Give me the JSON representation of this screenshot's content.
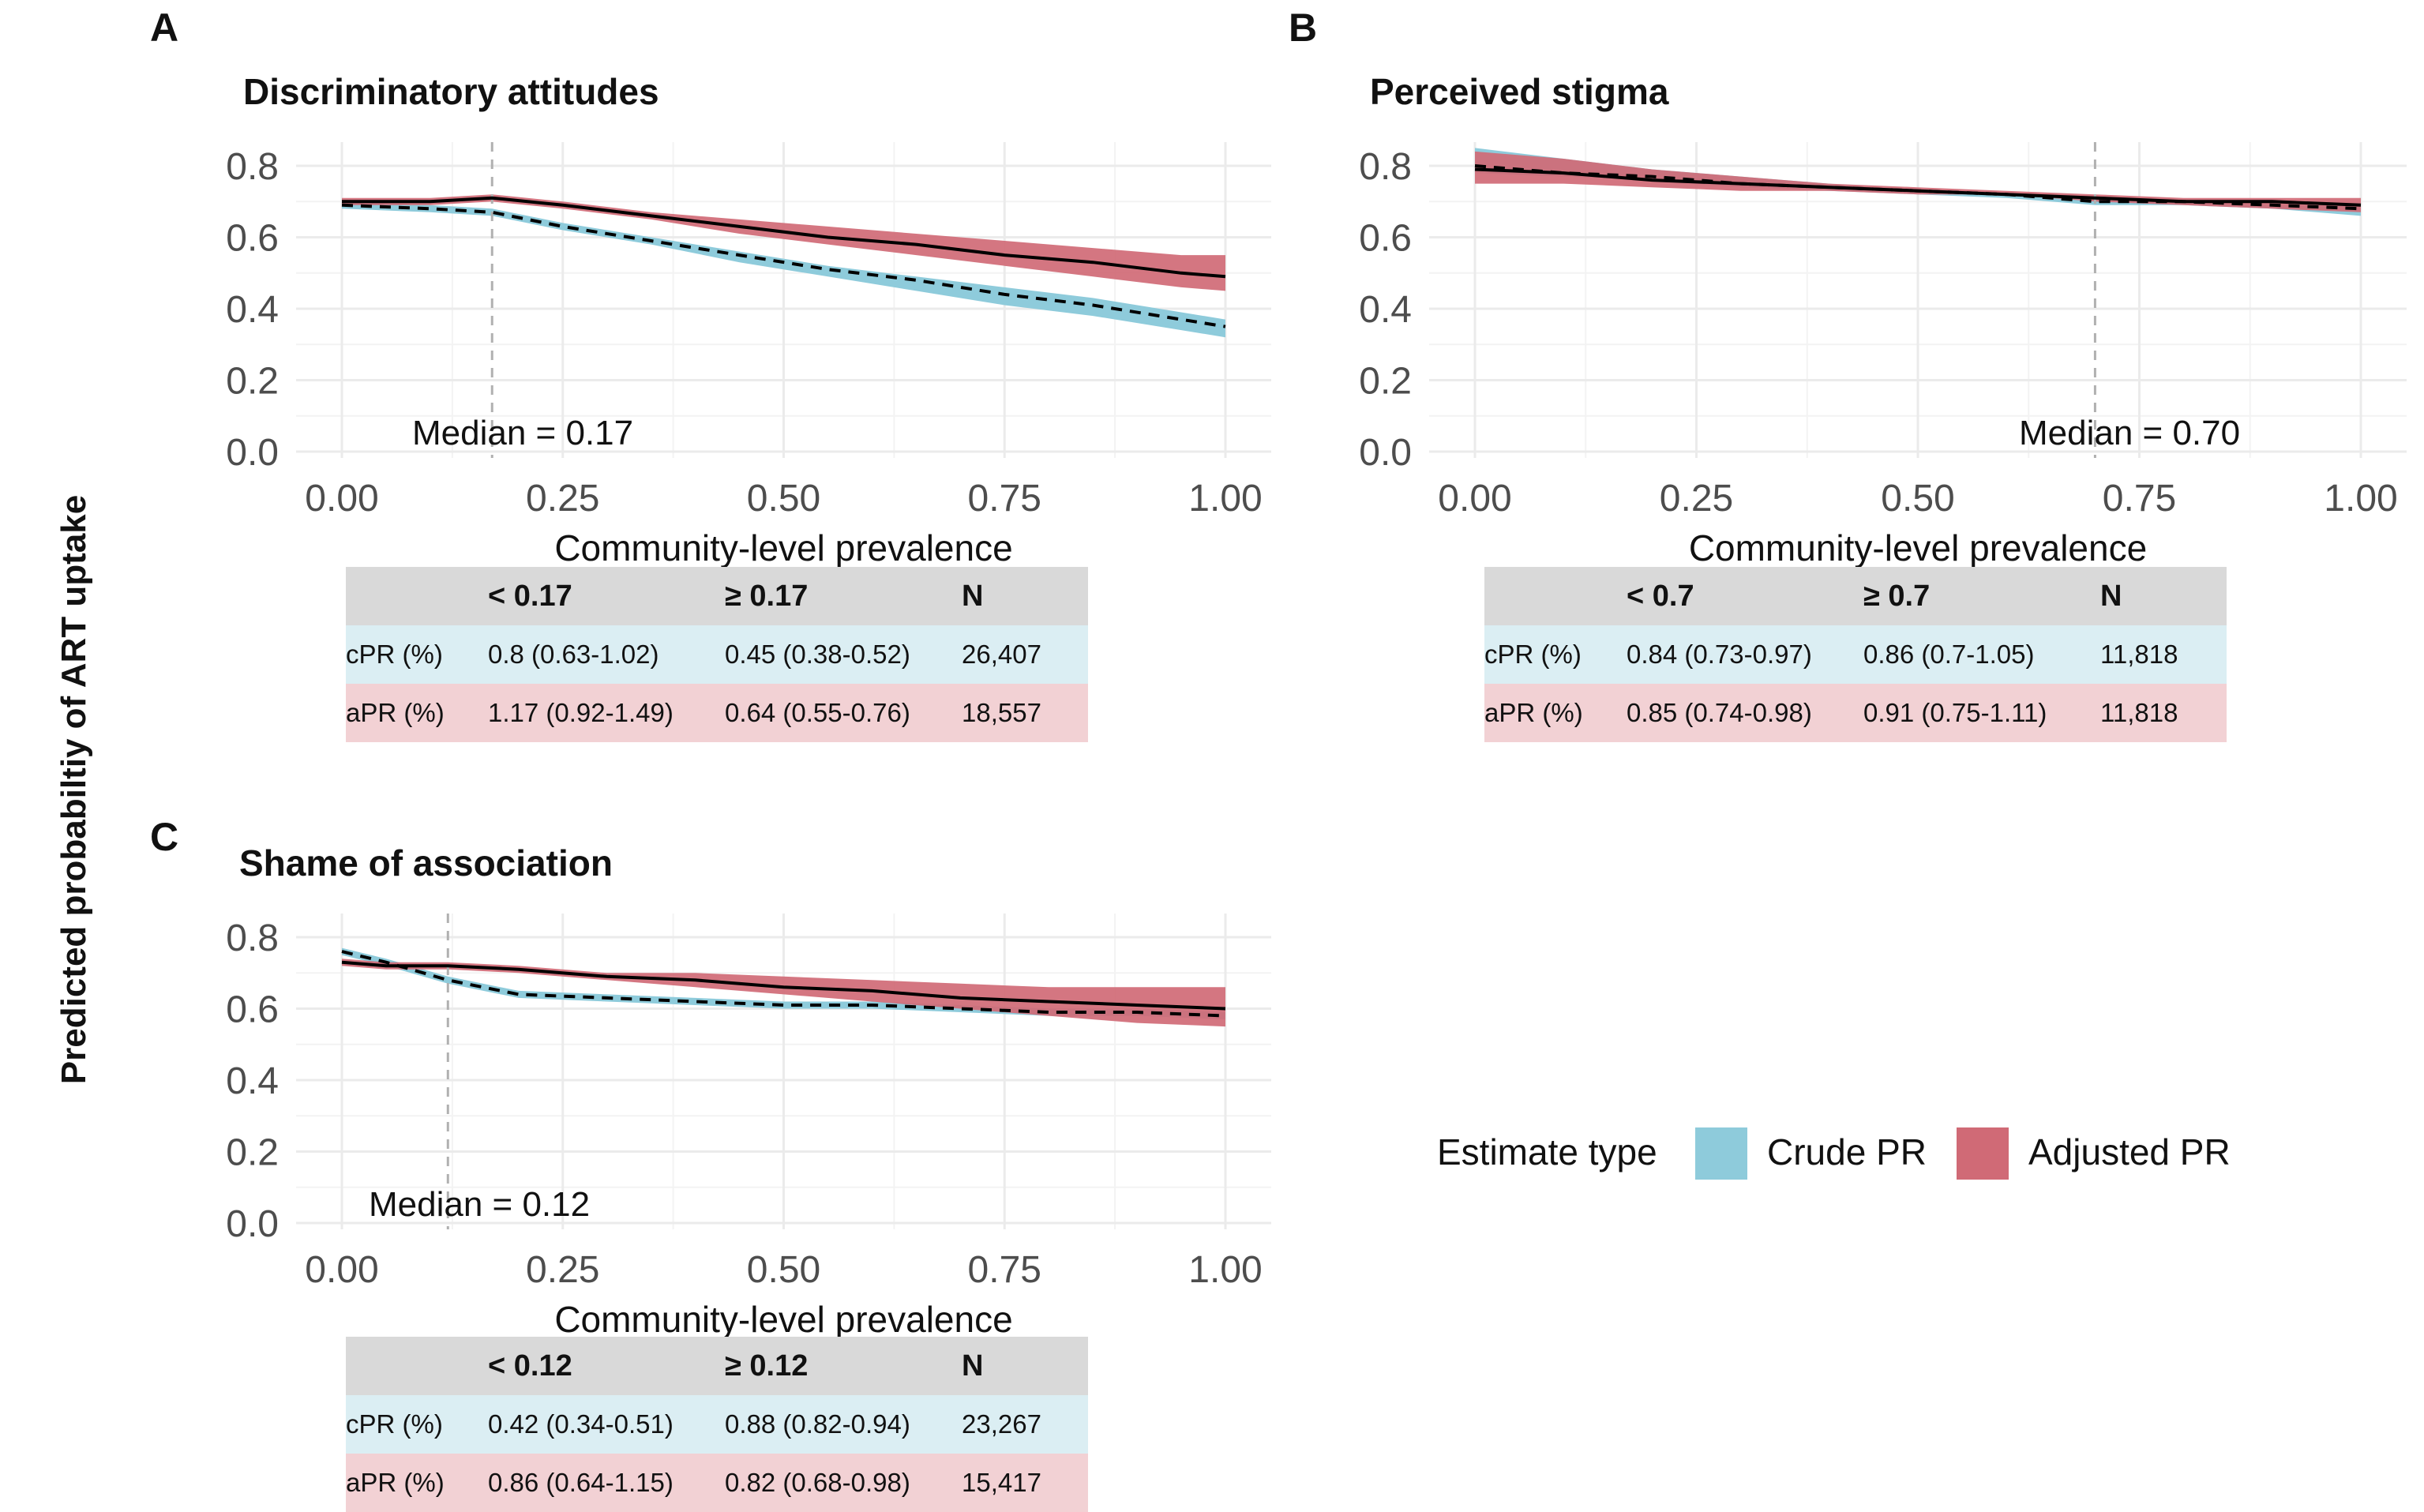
{
  "y_axis_label": "Predicted probabiltiy of ART uptake",
  "legend": {
    "title": "Estimate type",
    "items": [
      {
        "label": "Crude PR",
        "color": "#8ecbdb"
      },
      {
        "label": "Adjusted PR",
        "color": "#d06a76"
      }
    ]
  },
  "colors": {
    "crude": "#8ecbdb",
    "adjusted": "#d06a76",
    "grid": "#ebebeb"
  },
  "panels": [
    {
      "letter": "A",
      "title": "Discriminatory attitudes",
      "median_label": "Median = 0.17",
      "table": {
        "headers": [
          "",
          "< 0.17",
          "≥ 0.17",
          "N"
        ],
        "crude": [
          "cPR (%)",
          "0.8 (0.63-1.02)",
          "0.45 (0.38-0.52)",
          "26,407"
        ],
        "adjusted": [
          "aPR (%)",
          "1.17 (0.92-1.49)",
          "0.64 (0.55-0.76)",
          "18,557"
        ]
      }
    },
    {
      "letter": "B",
      "title": "Perceived stigma",
      "median_label": "Median = 0.70",
      "table": {
        "headers": [
          "",
          "< 0.7",
          "≥ 0.7",
          "N"
        ],
        "crude": [
          "cPR (%)",
          "0.84 (0.73-0.97)",
          "0.86 (0.7-1.05)",
          "11,818"
        ],
        "adjusted": [
          "aPR (%)",
          "0.85 (0.74-0.98)",
          "0.91 (0.75-1.11)",
          "11,818"
        ]
      }
    },
    {
      "letter": "C",
      "title": "Shame of association",
      "median_label": "Median = 0.12",
      "table": {
        "headers": [
          "",
          "< 0.12",
          "≥ 0.12",
          "N"
        ],
        "crude": [
          "cPR (%)",
          "0.42 (0.34-0.51)",
          "0.88 (0.82-0.94)",
          "23,267"
        ],
        "adjusted": [
          "aPR (%)",
          "0.86 (0.64-1.15)",
          "0.82 (0.68-0.98)",
          "15,417"
        ]
      }
    }
  ],
  "chart_data": [
    {
      "type": "line",
      "title": "Discriminatory attitudes",
      "xlabel": "Community-level prevalence",
      "ylabel": "Predicted probabiltiy of ART uptake",
      "xlim": [
        0,
        1
      ],
      "ylim": [
        0,
        0.8
      ],
      "xticks": [
        "0.00",
        "0.25",
        "0.50",
        "0.75",
        "1.00"
      ],
      "yticks": [
        "0.0",
        "0.2",
        "0.4",
        "0.6",
        "0.8"
      ],
      "median": 0.17,
      "x": [
        0,
        0.1,
        0.17,
        0.25,
        0.35,
        0.45,
        0.55,
        0.65,
        0.75,
        0.85,
        0.95,
        1.0
      ],
      "series": [
        {
          "name": "Crude PR",
          "style": "dashed",
          "values": [
            0.69,
            0.68,
            0.67,
            0.63,
            0.59,
            0.55,
            0.51,
            0.48,
            0.44,
            0.41,
            0.37,
            0.35
          ],
          "lower": [
            0.68,
            0.67,
            0.66,
            0.62,
            0.58,
            0.53,
            0.49,
            0.45,
            0.41,
            0.38,
            0.34,
            0.32
          ],
          "upper": [
            0.7,
            0.69,
            0.68,
            0.64,
            0.6,
            0.56,
            0.52,
            0.49,
            0.46,
            0.43,
            0.39,
            0.37
          ]
        },
        {
          "name": "Adjusted PR",
          "style": "solid",
          "values": [
            0.7,
            0.7,
            0.71,
            0.69,
            0.66,
            0.63,
            0.6,
            0.58,
            0.55,
            0.53,
            0.5,
            0.49
          ],
          "lower": [
            0.69,
            0.69,
            0.7,
            0.68,
            0.65,
            0.61,
            0.58,
            0.55,
            0.52,
            0.49,
            0.46,
            0.45
          ],
          "upper": [
            0.71,
            0.71,
            0.72,
            0.7,
            0.67,
            0.65,
            0.63,
            0.61,
            0.59,
            0.57,
            0.55,
            0.55
          ]
        }
      ]
    },
    {
      "type": "line",
      "title": "Perceived stigma",
      "xlabel": "Community-level prevalence",
      "ylabel": "Predicted probabiltiy of ART uptake",
      "xlim": [
        0,
        1
      ],
      "ylim": [
        0,
        0.8
      ],
      "xticks": [
        "0.00",
        "0.25",
        "0.50",
        "0.75",
        "1.00"
      ],
      "yticks": [
        "0.0",
        "0.2",
        "0.4",
        "0.6",
        "0.8"
      ],
      "median": 0.7,
      "x": [
        0,
        0.1,
        0.2,
        0.3,
        0.4,
        0.5,
        0.6,
        0.7,
        0.8,
        0.9,
        1.0
      ],
      "series": [
        {
          "name": "Crude PR",
          "style": "dashed",
          "values": [
            0.8,
            0.78,
            0.77,
            0.75,
            0.74,
            0.73,
            0.72,
            0.7,
            0.7,
            0.69,
            0.68
          ],
          "lower": [
            0.78,
            0.77,
            0.76,
            0.74,
            0.73,
            0.72,
            0.71,
            0.69,
            0.69,
            0.68,
            0.66
          ],
          "upper": [
            0.85,
            0.82,
            0.79,
            0.77,
            0.75,
            0.73,
            0.72,
            0.71,
            0.7,
            0.69,
            0.69
          ]
        },
        {
          "name": "Adjusted PR",
          "style": "solid",
          "values": [
            0.79,
            0.78,
            0.76,
            0.75,
            0.74,
            0.73,
            0.72,
            0.71,
            0.7,
            0.7,
            0.69
          ],
          "lower": [
            0.75,
            0.75,
            0.74,
            0.73,
            0.73,
            0.72,
            0.72,
            0.7,
            0.69,
            0.68,
            0.67
          ],
          "upper": [
            0.84,
            0.82,
            0.79,
            0.77,
            0.75,
            0.74,
            0.73,
            0.72,
            0.71,
            0.71,
            0.71
          ]
        }
      ]
    },
    {
      "type": "line",
      "title": "Shame of association",
      "xlabel": "Community-level prevalence",
      "ylabel": "Predicted probabiltiy of ART uptake",
      "xlim": [
        0,
        1
      ],
      "ylim": [
        0,
        0.8
      ],
      "xticks": [
        "0.00",
        "0.25",
        "0.50",
        "0.75",
        "1.00"
      ],
      "yticks": [
        "0.0",
        "0.2",
        "0.4",
        "0.6",
        "0.8"
      ],
      "median": 0.12,
      "x": [
        0,
        0.05,
        0.12,
        0.2,
        0.3,
        0.4,
        0.5,
        0.6,
        0.7,
        0.8,
        0.9,
        1.0
      ],
      "series": [
        {
          "name": "Crude PR",
          "style": "dashed",
          "values": [
            0.76,
            0.73,
            0.68,
            0.64,
            0.63,
            0.62,
            0.61,
            0.61,
            0.6,
            0.59,
            0.59,
            0.58
          ],
          "lower": [
            0.75,
            0.72,
            0.67,
            0.63,
            0.62,
            0.61,
            0.6,
            0.6,
            0.59,
            0.58,
            0.58,
            0.57
          ],
          "upper": [
            0.77,
            0.74,
            0.69,
            0.65,
            0.64,
            0.63,
            0.62,
            0.62,
            0.61,
            0.6,
            0.6,
            0.59
          ]
        },
        {
          "name": "Adjusted PR",
          "style": "solid",
          "values": [
            0.73,
            0.72,
            0.72,
            0.71,
            0.69,
            0.68,
            0.66,
            0.65,
            0.63,
            0.62,
            0.61,
            0.6
          ],
          "lower": [
            0.72,
            0.71,
            0.71,
            0.7,
            0.68,
            0.66,
            0.64,
            0.62,
            0.6,
            0.58,
            0.56,
            0.55
          ],
          "upper": [
            0.74,
            0.73,
            0.73,
            0.72,
            0.7,
            0.7,
            0.69,
            0.68,
            0.67,
            0.66,
            0.66,
            0.66
          ]
        }
      ]
    }
  ]
}
